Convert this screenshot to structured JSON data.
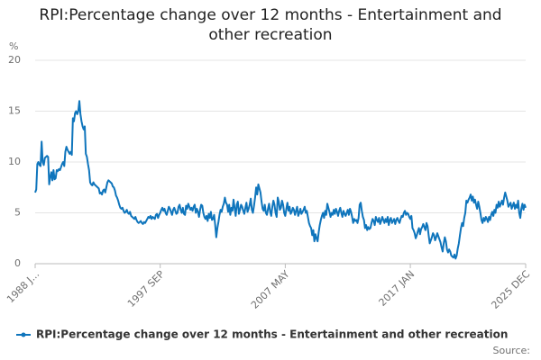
{
  "chart_data": {
    "type": "line",
    "title": "RPI:Percentage change over 12 months - Entertainment and other recreation",
    "y_unit": "%",
    "source": "Source:",
    "categories": [
      "1988 J...",
      null,
      null,
      null,
      null,
      null,
      null,
      null,
      null,
      null,
      null,
      null,
      null,
      null,
      null,
      null,
      null,
      null,
      null,
      null,
      null,
      null,
      null,
      null,
      null,
      null,
      null,
      null,
      null,
      null,
      null,
      null,
      null,
      null,
      null,
      null,
      null,
      null,
      null,
      null,
      null,
      null,
      null,
      null,
      null,
      null,
      null,
      null,
      null,
      null,
      null,
      null,
      null,
      null,
      null,
      null,
      null,
      null,
      null,
      null,
      null,
      null,
      null,
      null,
      null,
      null,
      null,
      null,
      null,
      null,
      null,
      null,
      null,
      null,
      null,
      null,
      null,
      null,
      null,
      null,
      null,
      null,
      null,
      null,
      null,
      null,
      null,
      null,
      null,
      null,
      null,
      null,
      null,
      null,
      null,
      null,
      null,
      null,
      null,
      null,
      null,
      null,
      null,
      null,
      null,
      null,
      null,
      null,
      null,
      null,
      null,
      null,
      null,
      null,
      null,
      null,
      "1997 SEP",
      null,
      null,
      null,
      null,
      null,
      null,
      null,
      null,
      null,
      null,
      null,
      null,
      null,
      null,
      null,
      null,
      null,
      null,
      null,
      null,
      null,
      null,
      null,
      null,
      null,
      null,
      null,
      null,
      null,
      null,
      null,
      null,
      null,
      null,
      null,
      null,
      null,
      null,
      null,
      null,
      null,
      null,
      null,
      null,
      null,
      null,
      null,
      null,
      null,
      null,
      null,
      null,
      null,
      null,
      null,
      null,
      null,
      null,
      null,
      null,
      null,
      null,
      null,
      null,
      null,
      null,
      null,
      null,
      null,
      null,
      null,
      null,
      null,
      null,
      null,
      null,
      null,
      null,
      null,
      null,
      null,
      null,
      null,
      null,
      null,
      null,
      null,
      null,
      null,
      null,
      null,
      null,
      null,
      null,
      null,
      null,
      null,
      null,
      null,
      null,
      null,
      null,
      null,
      null,
      null,
      null,
      null,
      null,
      null,
      null,
      null,
      null,
      null,
      null,
      null,
      "2007 MAY",
      null,
      null,
      null,
      null,
      null,
      null,
      null,
      null,
      null,
      null,
      null,
      null,
      null,
      null,
      null,
      null,
      null,
      null,
      null,
      null,
      null,
      null,
      null,
      null,
      null,
      null,
      null,
      null,
      null,
      null,
      null,
      null,
      null,
      null,
      null,
      null,
      null,
      null,
      null,
      null,
      null,
      null,
      null,
      null,
      null,
      null,
      null,
      null,
      null,
      null,
      null,
      null,
      null,
      null,
      null,
      null,
      null,
      null,
      null,
      null,
      null,
      null,
      null,
      null,
      null,
      null,
      null,
      null,
      null,
      null,
      null,
      null,
      null,
      null,
      null,
      null,
      null,
      null,
      null,
      null,
      null,
      null,
      null,
      null,
      null,
      null,
      null,
      null,
      null,
      null,
      null,
      null,
      null,
      null,
      null,
      null,
      null,
      null,
      null,
      null,
      null,
      null,
      null,
      null,
      null,
      null,
      null,
      null,
      null,
      null,
      null,
      null,
      null,
      null,
      null,
      "2017 JAN",
      null,
      null,
      null,
      null,
      null,
      null,
      null,
      null,
      null,
      null,
      null,
      null,
      null,
      null,
      null,
      null,
      null,
      null,
      null,
      null,
      null,
      null,
      null,
      null,
      null,
      null,
      null,
      null,
      null,
      null,
      null,
      null,
      null,
      null,
      null,
      null,
      null,
      null,
      null,
      null,
      null,
      null,
      null,
      null,
      null,
      null,
      null,
      null,
      null,
      null,
      null,
      null,
      null,
      null,
      null,
      null,
      null,
      null,
      null,
      null,
      null,
      null,
      null,
      null,
      null,
      null,
      null,
      null,
      null,
      null,
      null,
      null,
      null,
      null,
      null,
      null,
      null,
      null,
      null,
      null,
      null,
      null,
      null,
      null,
      null,
      null,
      null,
      null,
      null,
      null,
      null,
      null,
      null,
      null,
      null,
      null,
      null,
      null,
      null,
      null,
      null,
      null,
      null,
      null,
      null,
      null,
      "2025 DEC"
    ],
    "series": [
      {
        "name": "RPI:Percentage change over 12 months - Entertainment and other recreation",
        "color": "#0f75bc",
        "values": [
          7,
          7.3,
          9.8,
          10,
          9.7,
          9.6,
          12,
          10,
          9.7,
          10.4,
          10.5,
          10.6,
          10.5,
          7.8,
          8.5,
          9,
          8.2,
          9.2,
          8.3,
          8.4,
          9.2,
          9.1,
          9.3,
          9.2,
          9.5,
          9.8,
          10,
          9.6,
          11,
          11.5,
          11.2,
          11,
          10.8,
          11,
          10.7,
          14.3,
          14,
          14.8,
          15,
          14.7,
          15,
          16,
          14.7,
          14,
          13.5,
          13.2,
          13.5,
          10.8,
          10.5,
          9.8,
          9.2,
          8,
          7.8,
          7.7,
          8,
          7.8,
          7.7,
          7.6,
          7.5,
          7.4,
          6.9,
          7,
          6.8,
          7.2,
          7.3,
          7,
          7.5,
          8,
          8.2,
          8.1,
          8,
          7.9,
          7.6,
          7.5,
          7.2,
          6.7,
          6.5,
          6.2,
          5.8,
          5.5,
          5.4,
          5.5,
          5.2,
          5.0,
          5.1,
          5.3,
          5.0,
          4.9,
          5.1,
          4.7,
          4.6,
          4.5,
          4.4,
          4.6,
          4.3,
          4.1,
          4.0,
          4.1,
          4.2,
          4.0,
          3.9,
          4.1,
          4.0,
          4.2,
          4.4,
          4.6,
          4.5,
          4.7,
          4.4,
          4.6,
          4.5,
          4.4,
          4.8,
          4.9,
          4.5,
          4.8,
          5.0,
          5.3,
          5.5,
          5.2,
          5.4,
          5.0,
          4.8,
          5.2,
          5.6,
          5.4,
          5.1,
          4.8,
          5.3,
          5.5,
          5.2,
          4.9,
          5.0,
          5.6,
          5.8,
          5.3,
          5.0,
          5.5,
          4.9,
          4.8,
          5.7,
          5.4,
          5.9,
          5.6,
          5.3,
          5.5,
          5.2,
          5.6,
          5.8,
          5.0,
          5.4,
          5.1,
          4.6,
          5.3,
          5.8,
          5.7,
          5.0,
          4.6,
          4.4,
          4.7,
          4.2,
          4.9,
          4.5,
          5.1,
          4.3,
          4.4,
          4.8,
          3.8,
          2.6,
          3.5,
          4.1,
          4.8,
          5.3,
          5.1,
          5.6,
          5.9,
          6.5,
          6.0,
          5.8,
          5.1,
          5.8,
          4.8,
          5.5,
          5.2,
          6.3,
          5.5,
          4.7,
          5.8,
          6.1,
          4.9,
          5.3,
          5.8,
          5.6,
          5.2,
          4.9,
          5.5,
          6.0,
          5.1,
          5.4,
          5.8,
          6.4,
          5.3,
          5.0,
          5.7,
          6.5,
          7.5,
          6.8,
          7.8,
          7.4,
          7.0,
          6.1,
          5.4,
          5.2,
          5.8,
          5.0,
          4.8,
          5.4,
          5.9,
          5.1,
          4.7,
          5.6,
          6.2,
          5.8,
          5.0,
          4.6,
          6.5,
          6.1,
          5.3,
          5.5,
          6.2,
          5.8,
          5.0,
          4.7,
          5.4,
          6.0,
          5.2,
          5.6,
          4.9,
          5.1,
          5.5,
          5.3,
          4.8,
          5.2,
          5.6,
          4.7,
          5.0,
          5.4,
          4.9,
          5.1,
          5.3,
          5.6,
          5.0,
          5.2,
          4.6,
          4.0,
          3.7,
          3.5,
          2.8,
          3.3,
          2.2,
          2.9,
          2.5,
          2.2,
          3.1,
          3.8,
          4.3,
          4.7,
          5.0,
          4.5,
          5.2,
          4.8,
          5.9,
          5.5,
          5.1,
          4.6,
          5.0,
          4.8,
          5.3,
          4.9,
          5.4,
          5.1,
          4.7,
          5.2,
          5.5,
          5.0,
          4.6,
          5.2,
          4.9,
          4.7,
          5.0,
          5.3,
          4.8,
          5.4,
          5.1,
          4.6,
          4.0,
          4.4,
          4.2,
          4.3,
          4.0,
          4.5,
          5.8,
          6.0,
          5.2,
          4.6,
          4.3,
          3.5,
          3.8,
          3.3,
          3.6,
          3.4,
          3.5,
          4.0,
          4.4,
          4.2,
          3.8,
          4.6,
          4.3,
          4.1,
          4.5,
          3.9,
          4.2,
          4.6,
          4.3,
          4.0,
          4.4,
          4.1,
          4.6,
          3.8,
          4.3,
          4.5,
          4.0,
          4.2,
          4.4,
          3.9,
          4.3,
          4.5,
          4.2,
          4.0,
          4.4,
          4.7,
          4.6,
          5.0,
          5.2,
          4.8,
          5.0,
          4.9,
          4.6,
          4.4,
          4.7,
          3.5,
          3.3,
          3.0,
          2.5,
          2.8,
          3.2,
          3.5,
          2.9,
          3.4,
          3.6,
          3.9,
          3.6,
          3.3,
          4.0,
          3.7,
          2.8,
          2.0,
          2.3,
          2.6,
          3.0,
          2.8,
          2.3,
          2.6,
          3.0,
          2.7,
          2.4,
          2.1,
          1.6,
          1.2,
          2.0,
          2.6,
          2.2,
          1.4,
          1.1,
          1.4,
          1.2,
          0.8,
          0.7,
          0.6,
          0.9,
          0.5,
          0.8,
          1.5,
          2.0,
          2.8,
          3.5,
          4.0,
          3.7,
          4.5,
          5.0,
          6.2,
          6.0,
          6.3,
          6.5,
          6.8,
          6.2,
          6.6,
          6.0,
          6.3,
          5.8,
          5.4,
          6.1,
          5.6,
          5.0,
          4.3,
          4.0,
          4.5,
          4.2,
          4.6,
          4.4,
          4.1,
          4.6,
          4.3,
          4.8,
          5.1,
          4.7,
          5.3,
          5.0,
          5.8,
          5.5,
          6.1,
          5.6,
          5.9,
          6.2,
          5.8,
          6.5,
          7.0,
          6.6,
          6.2,
          5.6,
          5.8,
          6.0,
          5.4,
          5.7,
          6.0,
          5.4,
          5.8,
          5.5,
          6.2,
          5.0,
          4.5,
          5.4,
          5.9,
          5.3,
          5.8,
          5.5
        ]
      }
    ],
    "ylim": [
      0,
      20
    ],
    "yticks": [
      0,
      5,
      10,
      15,
      20
    ],
    "grid": true
  }
}
